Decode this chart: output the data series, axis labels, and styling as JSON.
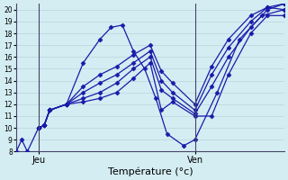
{
  "xlabel": "Température (°c)",
  "bg_color": "#d4edf2",
  "grid_color": "#b8d4dc",
  "line_color": "#1a1aaa",
  "ylim": [
    8,
    20.5
  ],
  "xlim": [
    0,
    24
  ],
  "yticks": [
    8,
    9,
    10,
    11,
    12,
    13,
    14,
    15,
    16,
    17,
    18,
    19,
    20
  ],
  "day_lines": [
    2,
    16
  ],
  "day_labels": [
    "Jeu",
    "Ven"
  ],
  "lines": [
    [
      [
        0,
        8.0
      ],
      [
        0.5,
        9.0
      ],
      [
        1.0,
        8.0
      ],
      [
        2.0,
        10.0
      ],
      [
        2.5,
        10.2
      ],
      [
        3.0,
        11.5
      ],
      [
        4.5,
        12.0
      ],
      [
        6.0,
        15.5
      ],
      [
        7.5,
        17.5
      ],
      [
        8.5,
        18.5
      ],
      [
        9.5,
        18.7
      ],
      [
        10.5,
        16.5
      ],
      [
        11.5,
        15.0
      ],
      [
        12.5,
        12.5
      ],
      [
        13.5,
        9.5
      ],
      [
        15.0,
        8.5
      ],
      [
        16.0,
        9.0
      ],
      [
        18.0,
        13.0
      ],
      [
        20.0,
        17.5
      ],
      [
        22.0,
        19.5
      ],
      [
        24.0,
        20.0
      ]
    ],
    [
      [
        2.0,
        10.0
      ],
      [
        2.5,
        10.2
      ],
      [
        3.0,
        11.5
      ],
      [
        4.5,
        12.0
      ],
      [
        6.0,
        12.2
      ],
      [
        7.5,
        12.5
      ],
      [
        9.0,
        13.0
      ],
      [
        10.5,
        14.2
      ],
      [
        12.0,
        15.5
      ],
      [
        13.0,
        11.5
      ],
      [
        14.0,
        12.2
      ],
      [
        16.0,
        11.0
      ],
      [
        17.5,
        11.0
      ],
      [
        19.0,
        14.5
      ],
      [
        21.0,
        18.0
      ],
      [
        22.5,
        19.5
      ],
      [
        24.0,
        19.5
      ]
    ],
    [
      [
        2.0,
        10.0
      ],
      [
        2.5,
        10.2
      ],
      [
        3.0,
        11.5
      ],
      [
        4.5,
        12.0
      ],
      [
        6.0,
        12.5
      ],
      [
        7.5,
        13.0
      ],
      [
        9.0,
        13.8
      ],
      [
        10.5,
        15.0
      ],
      [
        12.0,
        16.0
      ],
      [
        13.0,
        13.2
      ],
      [
        14.0,
        12.5
      ],
      [
        16.0,
        11.2
      ],
      [
        17.5,
        13.5
      ],
      [
        19.0,
        16.0
      ],
      [
        21.0,
        18.5
      ],
      [
        22.5,
        20.0
      ],
      [
        24.0,
        20.5
      ]
    ],
    [
      [
        2.0,
        10.0
      ],
      [
        2.5,
        10.2
      ],
      [
        3.0,
        11.5
      ],
      [
        4.5,
        12.0
      ],
      [
        6.0,
        13.0
      ],
      [
        7.5,
        13.8
      ],
      [
        9.0,
        14.5
      ],
      [
        10.5,
        15.5
      ],
      [
        12.0,
        16.5
      ],
      [
        13.0,
        14.0
      ],
      [
        14.0,
        13.0
      ],
      [
        16.0,
        11.5
      ],
      [
        17.5,
        14.5
      ],
      [
        19.0,
        16.8
      ],
      [
        21.0,
        19.0
      ],
      [
        22.5,
        20.2
      ],
      [
        24.0,
        20.5
      ]
    ],
    [
      [
        2.0,
        10.0
      ],
      [
        2.5,
        10.2
      ],
      [
        3.0,
        11.5
      ],
      [
        4.5,
        12.0
      ],
      [
        6.0,
        13.5
      ],
      [
        7.5,
        14.5
      ],
      [
        9.0,
        15.2
      ],
      [
        10.5,
        16.2
      ],
      [
        12.0,
        17.0
      ],
      [
        13.0,
        14.8
      ],
      [
        14.0,
        13.8
      ],
      [
        16.0,
        12.0
      ],
      [
        17.5,
        15.2
      ],
      [
        19.0,
        17.5
      ],
      [
        21.0,
        19.5
      ],
      [
        22.5,
        20.2
      ],
      [
        24.0,
        20.0
      ]
    ]
  ]
}
